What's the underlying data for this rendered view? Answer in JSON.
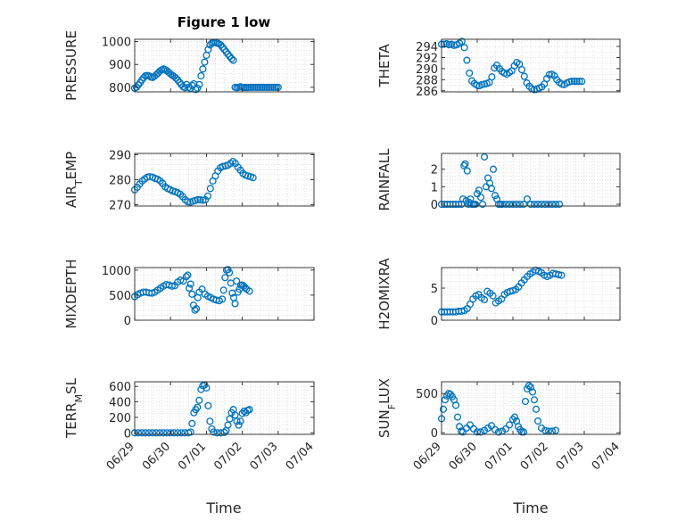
{
  "chart_data": [
    {
      "type": "scatter",
      "name": "pressure",
      "title": "Figure 1 low",
      "ylabel": "PRESSURE",
      "ylim": [
        780,
        1010
      ],
      "yticks": [
        800,
        900,
        1000
      ],
      "xlim": [
        "06/29",
        "07/04"
      ],
      "xticks": [
        "06/29",
        "06/30",
        "07/01",
        "07/02",
        "07/03",
        "07/04"
      ],
      "series": [
        {
          "x": [
            0.0,
            0.05,
            0.1,
            0.15,
            0.2,
            0.25,
            0.3,
            0.35,
            0.4,
            0.45,
            0.5,
            0.55,
            0.6,
            0.65,
            0.7,
            0.75,
            0.8,
            0.85,
            0.9,
            0.95,
            1.0,
            1.05,
            1.1,
            1.15,
            1.2,
            1.25,
            1.3,
            1.35,
            1.4,
            1.45,
            1.5,
            1.55,
            1.6,
            1.65,
            1.7,
            1.75,
            1.8,
            1.85,
            1.9,
            1.95,
            2.0,
            2.05,
            2.1,
            2.15,
            2.2,
            2.25,
            2.3,
            2.35,
            2.4,
            2.45,
            2.5,
            2.55,
            2.6,
            2.65,
            2.7,
            2.75,
            2.8,
            2.85,
            2.9,
            2.95,
            3.0,
            3.05,
            3.1,
            3.15,
            3.2,
            3.25,
            3.3,
            3.35,
            3.4,
            3.45,
            3.5,
            3.55,
            3.6,
            3.65,
            3.7,
            3.75,
            3.8,
            3.85,
            3.9,
            3.95,
            4.0
          ],
          "y": [
            796,
            800,
            810,
            820,
            832,
            842,
            850,
            852,
            850,
            845,
            843,
            848,
            855,
            862,
            870,
            876,
            880,
            877,
            872,
            865,
            858,
            852,
            847,
            840,
            832,
            822,
            812,
            803,
            798,
            812,
            800,
            795,
            808,
            815,
            790,
            796,
            812,
            850,
            880,
            910,
            940,
            965,
            985,
            993,
            995,
            995,
            993,
            990,
            985,
            975,
            965,
            955,
            945,
            935,
            925,
            918,
            800,
            798,
            800,
            802,
            800,
            799,
            800,
            799,
            800,
            800,
            800,
            800,
            800,
            800,
            800,
            800,
            800,
            800,
            800,
            800,
            800,
            800,
            800,
            800,
            800
          ]
        }
      ]
    },
    {
      "type": "scatter",
      "name": "theta",
      "ylabel": "THETA",
      "ylim": [
        285.8,
        295.3
      ],
      "yticks": [
        286,
        288,
        290,
        292,
        294
      ],
      "xlim": [
        "06/29",
        "07/04"
      ],
      "xticks": [
        "06/29",
        "06/30",
        "07/01",
        "07/02",
        "07/03",
        "07/04"
      ],
      "series": [
        {
          "x": [
            0.0,
            0.07,
            0.14,
            0.21,
            0.28,
            0.35,
            0.42,
            0.5,
            0.57,
            0.64,
            0.71,
            0.78,
            0.85,
            0.92,
            0.99,
            1.06,
            1.13,
            1.2,
            1.27,
            1.34,
            1.41,
            1.48,
            1.55,
            1.62,
            1.69,
            1.76,
            1.83,
            1.9,
            1.97,
            2.04,
            2.11,
            2.18,
            2.25,
            2.32,
            2.39,
            2.46,
            2.53,
            2.6,
            2.67,
            2.74,
            2.81,
            2.88,
            2.95,
            3.02,
            3.09,
            3.16,
            3.23,
            3.3,
            3.37,
            3.44,
            3.51,
            3.58,
            3.65,
            3.72,
            3.79,
            3.86,
            3.93
          ],
          "y": [
            294.4,
            294.4,
            294.5,
            294.3,
            294.4,
            294.2,
            294.3,
            294.6,
            294.9,
            293.8,
            291.5,
            289.2,
            287.8,
            287.3,
            287.0,
            286.9,
            287.1,
            287.2,
            287.3,
            287.5,
            288.5,
            290.1,
            290.6,
            290.0,
            289.5,
            289.2,
            289.0,
            289.3,
            289.6,
            290.5,
            291.1,
            290.8,
            289.8,
            288.6,
            287.4,
            286.8,
            286.4,
            286.2,
            286.3,
            286.5,
            286.7,
            287.2,
            288.2,
            288.9,
            289.0,
            288.7,
            288.0,
            287.5,
            287.2,
            287.1,
            287.4,
            287.6,
            287.7,
            287.7,
            287.7,
            287.7,
            287.7
          ]
        }
      ]
    },
    {
      "type": "scatter",
      "name": "air-temp",
      "ylabel": "AIR_TEMP",
      "ylim": [
        269.5,
        290.5
      ],
      "yticks": [
        270,
        280,
        290
      ],
      "xlim": [
        "06/29",
        "07/04"
      ],
      "xticks": [
        "06/29",
        "06/30",
        "07/01",
        "07/02",
        "07/03",
        "07/04"
      ],
      "series": [
        {
          "x": [
            0.0,
            0.07,
            0.14,
            0.21,
            0.28,
            0.35,
            0.42,
            0.5,
            0.57,
            0.64,
            0.71,
            0.78,
            0.85,
            0.92,
            0.99,
            1.06,
            1.13,
            1.2,
            1.27,
            1.34,
            1.41,
            1.48,
            1.55,
            1.62,
            1.69,
            1.76,
            1.83,
            1.9,
            1.97,
            2.04,
            2.11,
            2.18,
            2.25,
            2.32,
            2.39,
            2.46,
            2.53,
            2.6,
            2.67,
            2.74,
            2.81,
            2.88,
            2.95,
            3.02,
            3.09,
            3.16,
            3.23,
            3.3
          ],
          "y": [
            276.0,
            277.0,
            278.3,
            279.5,
            280.3,
            281.0,
            281.2,
            281.0,
            280.5,
            280.2,
            279.5,
            278.5,
            277.2,
            276.5,
            276.0,
            275.5,
            275.2,
            274.8,
            274.2,
            273.2,
            272.0,
            271.2,
            271.0,
            271.4,
            271.7,
            272.0,
            272.0,
            271.8,
            272.0,
            273.5,
            276.5,
            279.5,
            281.5,
            283.5,
            284.8,
            285.3,
            285.5,
            285.8,
            286.5,
            287.3,
            286.5,
            285.0,
            283.8,
            282.5,
            281.8,
            281.5,
            281.2,
            280.8
          ]
        }
      ]
    },
    {
      "type": "scatter",
      "name": "rainfall",
      "ylabel": "RAINFALL",
      "ylim": [
        -0.1,
        2.9
      ],
      "yticks": [
        0,
        1,
        2
      ],
      "xlim": [
        "06/29",
        "07/04"
      ],
      "xticks": [
        "06/29",
        "06/30",
        "07/01",
        "07/02",
        "07/03",
        "07/04"
      ],
      "series": [
        {
          "x": [
            0.0,
            0.08,
            0.16,
            0.24,
            0.32,
            0.4,
            0.48,
            0.56,
            0.6,
            0.63,
            0.66,
            0.69,
            0.72,
            0.75,
            0.78,
            0.81,
            0.85,
            0.9,
            0.95,
            1.0,
            1.05,
            1.1,
            1.15,
            1.2,
            1.25,
            1.3,
            1.35,
            1.4,
            1.45,
            1.5,
            1.55,
            1.6,
            1.65,
            1.7,
            1.8,
            1.9,
            2.0,
            2.1,
            2.2,
            2.3,
            2.4,
            2.5,
            2.6,
            2.7,
            2.8,
            2.9,
            3.0,
            3.1,
            3.2,
            3.3
          ],
          "y": [
            0,
            0,
            0,
            0,
            0,
            0,
            0,
            0,
            0.3,
            2.2,
            2.3,
            0.2,
            1.9,
            0.0,
            0.1,
            0.3,
            0.0,
            0.0,
            0.0,
            0.6,
            0.8,
            0.4,
            0.0,
            2.7,
            1.0,
            1.5,
            1.2,
            0.9,
            2.0,
            0.5,
            0.3,
            0.0,
            0.0,
            0.0,
            0.0,
            0.0,
            0.0,
            0.0,
            0.0,
            0.0,
            0.3,
            0.0,
            0.0,
            0.0,
            0.0,
            0.0,
            0.0,
            0.0,
            0.0,
            0.0
          ]
        }
      ]
    },
    {
      "type": "scatter",
      "name": "mixdepth",
      "ylabel": "MIXDEPTH",
      "ylim": [
        0,
        1050
      ],
      "yticks": [
        0,
        500,
        1000
      ],
      "xlim": [
        "06/29",
        "07/04"
      ],
      "xticks": [
        "06/29",
        "06/30",
        "07/01",
        "07/02",
        "07/03",
        "07/04"
      ],
      "series": [
        {
          "x": [
            0.0,
            0.08,
            0.16,
            0.24,
            0.32,
            0.4,
            0.48,
            0.56,
            0.64,
            0.72,
            0.8,
            0.88,
            0.96,
            1.04,
            1.12,
            1.2,
            1.28,
            1.36,
            1.44,
            1.48,
            1.52,
            1.56,
            1.6,
            1.64,
            1.68,
            1.72,
            1.76,
            1.8,
            1.88,
            1.96,
            2.04,
            2.12,
            2.2,
            2.28,
            2.36,
            2.44,
            2.48,
            2.52,
            2.56,
            2.6,
            2.64,
            2.68,
            2.72,
            2.76,
            2.8,
            2.84,
            2.88,
            2.92,
            2.96,
            3.0,
            3.04,
            3.08,
            3.12,
            3.2
          ],
          "y": [
            470,
            510,
            540,
            560,
            560,
            545,
            540,
            560,
            600,
            640,
            680,
            710,
            700,
            680,
            690,
            760,
            800,
            780,
            870,
            900,
            640,
            720,
            520,
            300,
            200,
            230,
            450,
            560,
            620,
            520,
            480,
            450,
            420,
            400,
            390,
            420,
            600,
            850,
            1000,
            1010,
            950,
            740,
            540,
            450,
            330,
            780,
            560,
            620,
            700,
            700,
            680,
            650,
            620,
            580
          ]
        }
      ]
    },
    {
      "type": "scatter",
      "name": "h2omixra",
      "ylabel": "H2OMIXRA",
      "ylim": [
        0,
        8.2
      ],
      "yticks": [
        0,
        5
      ],
      "xlim": [
        "06/29",
        "07/04"
      ],
      "xticks": [
        "06/29",
        "06/30",
        "07/01",
        "07/02",
        "07/03",
        "07/04"
      ],
      "series": [
        {
          "x": [
            0.0,
            0.08,
            0.16,
            0.24,
            0.32,
            0.4,
            0.48,
            0.56,
            0.64,
            0.72,
            0.8,
            0.88,
            0.96,
            1.04,
            1.12,
            1.2,
            1.28,
            1.36,
            1.44,
            1.52,
            1.6,
            1.68,
            1.76,
            1.84,
            1.92,
            2.0,
            2.08,
            2.16,
            2.24,
            2.32,
            2.4,
            2.48,
            2.56,
            2.64,
            2.72,
            2.8,
            2.88,
            2.96,
            3.04,
            3.12,
            3.2,
            3.28,
            3.36
          ],
          "y": [
            1.3,
            1.3,
            1.3,
            1.3,
            1.3,
            1.3,
            1.4,
            1.4,
            1.5,
            1.8,
            2.5,
            3.3,
            3.8,
            4.0,
            3.5,
            3.2,
            4.5,
            4.2,
            3.8,
            2.7,
            3.0,
            3.3,
            4.0,
            4.3,
            4.5,
            4.6,
            4.8,
            5.2,
            5.8,
            6.3,
            6.8,
            7.2,
            7.5,
            7.8,
            7.6,
            7.4,
            7.0,
            6.8,
            7.0,
            7.3,
            7.2,
            7.1,
            7.0
          ]
        }
      ]
    },
    {
      "type": "scatter",
      "name": "terr-msl",
      "ylabel": "TERR_MSL",
      "ylim": [
        -20,
        660
      ],
      "yticks": [
        0,
        200,
        400,
        600
      ],
      "xlim": [
        "06/29",
        "07/04"
      ],
      "xticks": [
        "06/29",
        "06/30",
        "07/01",
        "07/02",
        "07/03",
        "07/04"
      ],
      "xlabel": "Time",
      "series": [
        {
          "x": [
            0.0,
            0.1,
            0.2,
            0.3,
            0.4,
            0.5,
            0.6,
            0.7,
            0.8,
            0.9,
            1.0,
            1.1,
            1.2,
            1.3,
            1.4,
            1.5,
            1.56,
            1.6,
            1.65,
            1.7,
            1.75,
            1.8,
            1.85,
            1.9,
            1.95,
            2.0,
            2.05,
            2.1,
            2.15,
            2.2,
            2.3,
            2.4,
            2.5,
            2.55,
            2.6,
            2.65,
            2.7,
            2.75,
            2.8,
            2.85,
            2.9,
            2.95,
            3.0,
            3.05,
            3.1,
            3.15,
            3.2
          ],
          "y": [
            0,
            0,
            0,
            0,
            0,
            0,
            0,
            0,
            0,
            0,
            0,
            0,
            0,
            0,
            0,
            0,
            10,
            120,
            260,
            300,
            330,
            420,
            560,
            610,
            620,
            580,
            350,
            150,
            50,
            10,
            0,
            0,
            5,
            30,
            100,
            180,
            260,
            300,
            230,
            150,
            100,
            150,
            250,
            280,
            260,
            290,
            300
          ]
        }
      ]
    },
    {
      "type": "scatter",
      "name": "sun-flux",
      "ylabel": "SUN_FLUX",
      "ylim": [
        -20,
        650
      ],
      "yticks": [
        0,
        500
      ],
      "xlim": [
        "06/29",
        "07/04"
      ],
      "xticks": [
        "06/29",
        "06/30",
        "07/01",
        "07/02",
        "07/03",
        "07/04"
      ],
      "xlabel": "Time",
      "series": [
        {
          "x": [
            0.0,
            0.05,
            0.1,
            0.15,
            0.2,
            0.25,
            0.3,
            0.35,
            0.4,
            0.45,
            0.5,
            0.55,
            0.6,
            0.7,
            0.8,
            0.9,
            1.0,
            1.1,
            1.2,
            1.3,
            1.4,
            1.5,
            1.6,
            1.7,
            1.8,
            1.9,
            2.0,
            2.05,
            2.1,
            2.15,
            2.2,
            2.25,
            2.3,
            2.35,
            2.4,
            2.45,
            2.5,
            2.55,
            2.6,
            2.65,
            2.7,
            2.8,
            2.9,
            3.0,
            3.1,
            3.2
          ],
          "y": [
            180,
            300,
            420,
            470,
            500,
            490,
            460,
            420,
            350,
            200,
            80,
            20,
            10,
            60,
            100,
            50,
            10,
            10,
            30,
            60,
            90,
            40,
            10,
            20,
            50,
            100,
            170,
            200,
            150,
            80,
            40,
            10,
            10,
            400,
            560,
            600,
            580,
            520,
            420,
            300,
            150,
            60,
            30,
            20,
            20,
            30
          ]
        }
      ]
    }
  ]
}
